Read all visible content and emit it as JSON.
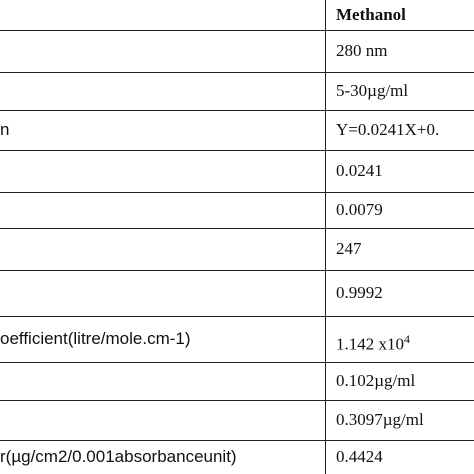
{
  "table": {
    "header": "Methanol",
    "rows": [
      {
        "value": "280 nm"
      },
      {
        "value": "5-30µg/ml"
      },
      {
        "label": "n",
        "value": "Y=0.0241X+0."
      },
      {
        "value": "0.0241"
      },
      {
        "value": "0.0079"
      },
      {
        "value": "247"
      },
      {
        "value": "0.9992"
      },
      {
        "label": "oefficient(litre/mole.cm-1)",
        "value": "1.142 x10",
        "superscript": "4"
      },
      {
        "value": "0.102µg/ml"
      },
      {
        "value": "0.3097µg/ml"
      },
      {
        "label": "r(µg/cm2/0.001absorbanceunit)",
        "value": "0.4424"
      }
    ]
  }
}
